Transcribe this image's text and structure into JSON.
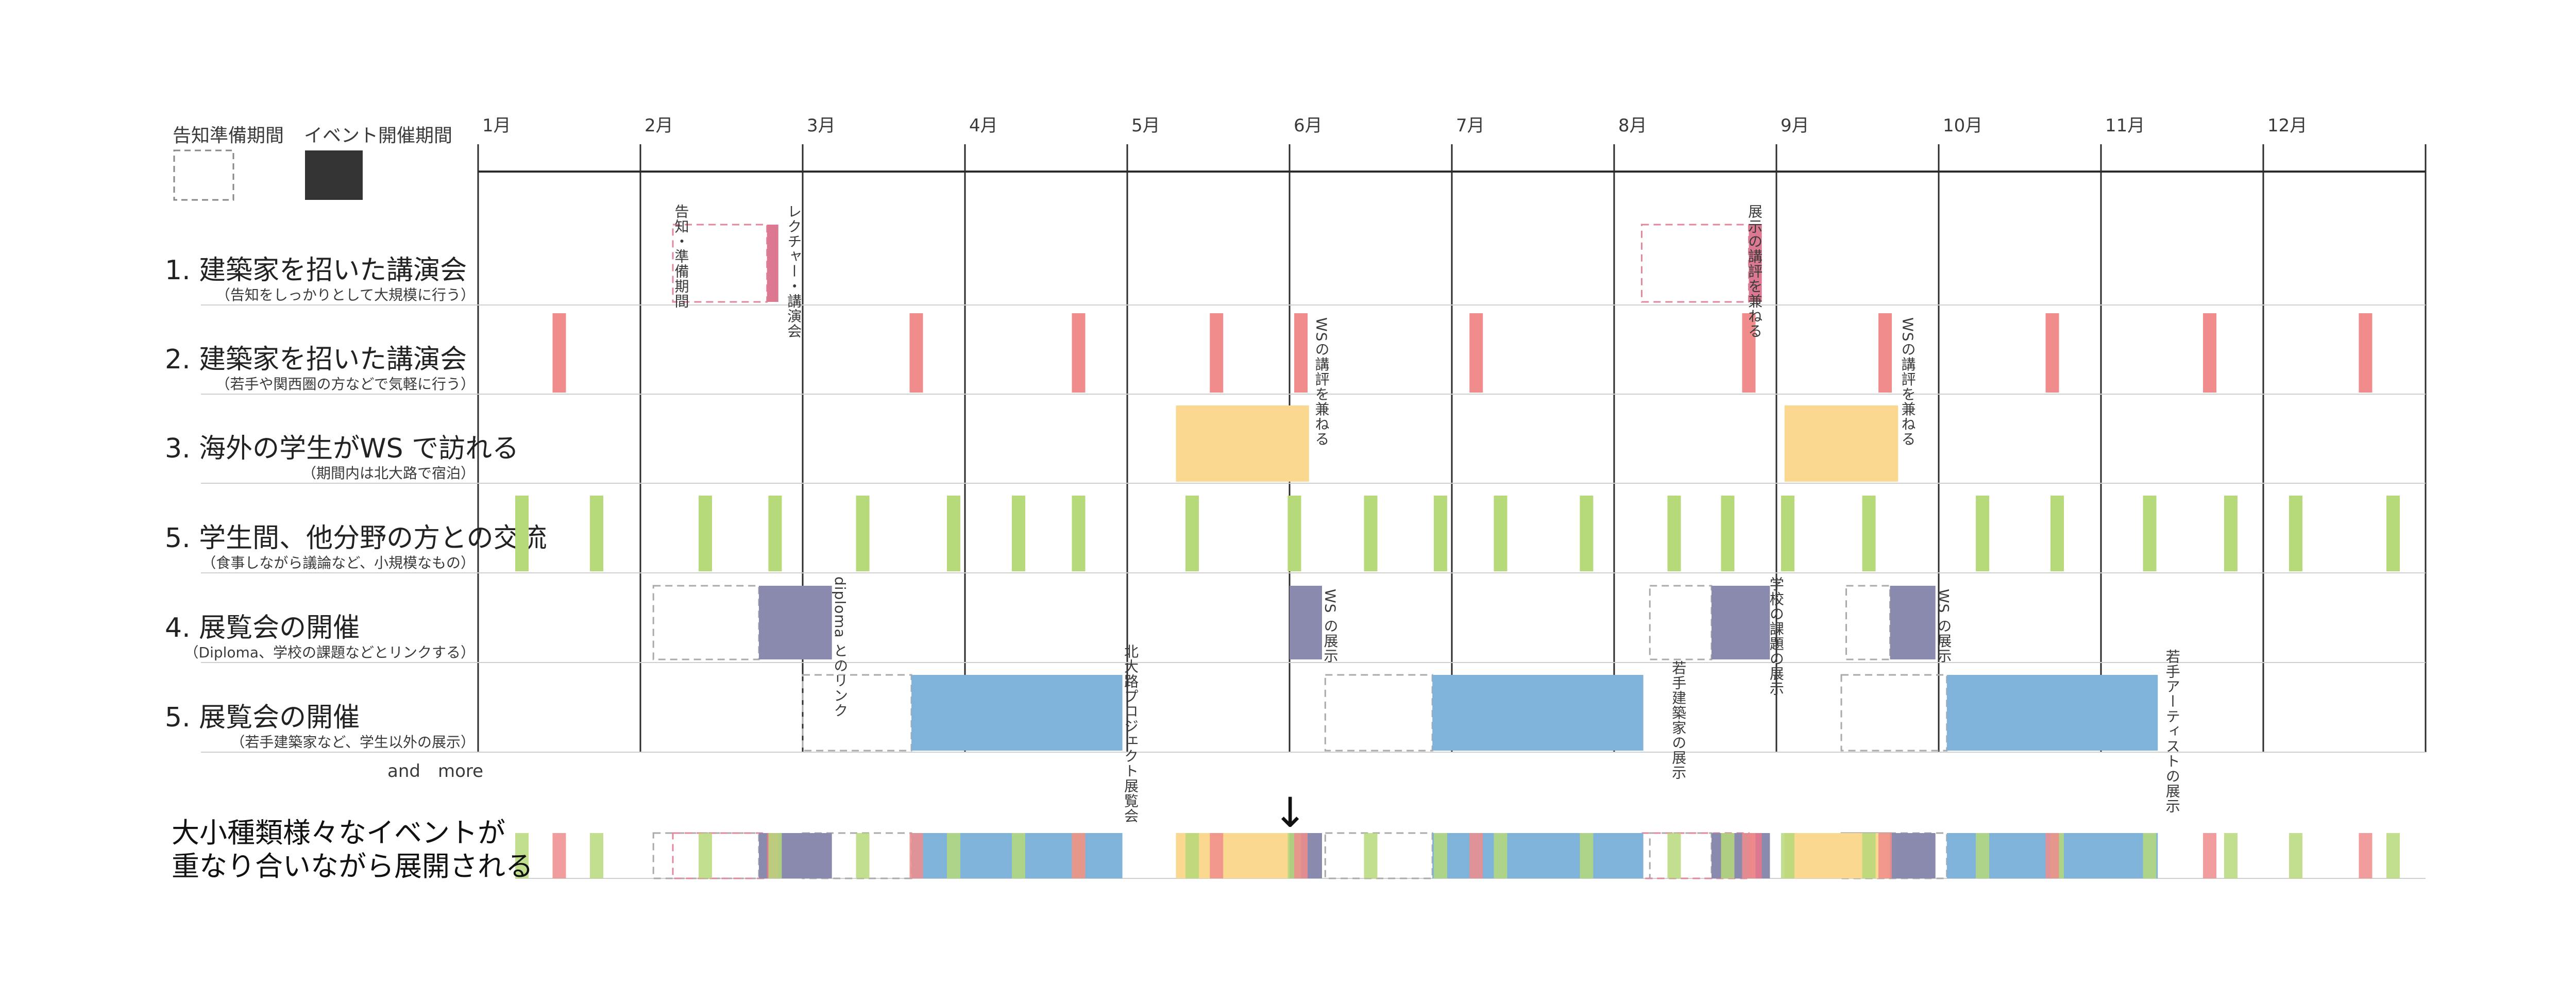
{
  "legend": {
    "prep_label": "告知準備期間",
    "event_label": "イベント開催期間"
  },
  "months": [
    "1月",
    "2月",
    "3月",
    "4月",
    "5月",
    "6月",
    "7月",
    "8月",
    "9月",
    "10月",
    "11月",
    "12月"
  ],
  "colors": {
    "red": "#f08c8c",
    "pink": "#dc7890",
    "orange": "#fad88f",
    "green": "#b6d97a",
    "purple": "#8a8aae",
    "blue": "#80b3da",
    "line": "#2b2b2b",
    "divider": "#cfcfcf",
    "text": "#3a3a3a",
    "dash_red": "#e0889b",
    "dash_gray": "#aaaaaa"
  },
  "rows": [
    {
      "id": "lecture-large",
      "title": "1. 建築家を招いた講演会",
      "subtitle": "（告知をしっかりとして大規模に行う）",
      "annotations": [
        "告知・準備期間",
        "レクチャー・講演会",
        "展示の講評を兼ねる"
      ]
    },
    {
      "id": "lecture-small",
      "title": "2. 建築家を招いた講演会",
      "subtitle": "（若手や関西圏の方などで気軽に行う）",
      "annotations": [
        "WSの講評を兼ねる",
        "WSの講評を兼ねる"
      ]
    },
    {
      "id": "overseas-ws",
      "title": "3. 海外の学生がWS で訪れる",
      "subtitle": "（期間内は北大路で宿泊）",
      "annotations": []
    },
    {
      "id": "exchange",
      "title": "5. 学生間、他分野の方との交流",
      "subtitle": "（食事しながら議論など、小規模なもの）",
      "annotations": []
    },
    {
      "id": "exhibition-school",
      "title": "4. 展覧会の開催",
      "subtitle": "（Diploma、学校の課題などとリンクする）",
      "annotations": [
        "diploma とのリンク",
        "WS の展示",
        "学校の課題の展示",
        "WS の展示"
      ]
    },
    {
      "id": "exhibition-external",
      "title": "5. 展覧会の開催",
      "subtitle": "（若手建築家など、学生以外の展示）",
      "annotations": [
        "北大路プロジェクト展覧会",
        "若手建築家の展示",
        "若手アーティストの展示"
      ]
    }
  ],
  "and_more": "and　more",
  "arrow": "↓",
  "conclusion": [
    "大小種類様々なイベントが",
    "重なり合いながら展開される"
  ],
  "events": {
    "lecture-large": {
      "prep": [
        [
          2.2,
          2.78
        ],
        [
          8.17,
          8.83
        ]
      ],
      "event": [
        [
          2.78,
          2.85
        ],
        [
          8.83,
          8.91
        ]
      ]
    },
    "lecture-small": [
      1.5,
      3.7,
      4.7,
      5.55,
      6.07,
      7.15,
      8.83,
      9.67,
      10.7,
      11.67,
      12.63
    ],
    "overseas-ws": [
      [
        5.3,
        6.12
      ],
      [
        9.05,
        9.75
      ]
    ],
    "exchange": [
      1.27,
      1.73,
      2.4,
      2.83,
      3.37,
      3.93,
      4.33,
      4.7,
      5.4,
      6.03,
      6.5,
      6.93,
      7.3,
      7.83,
      8.37,
      8.7,
      9.07,
      9.57,
      10.27,
      10.73,
      11.3,
      11.8,
      12.2,
      12.8
    ],
    "exhibition-school": {
      "prep": [
        [
          2.08,
          2.73
        ],
        [
          8.22,
          8.6
        ],
        [
          9.43,
          9.7
        ]
      ],
      "event": [
        [
          2.73,
          3.18
        ],
        [
          6.0,
          6.2
        ],
        [
          8.6,
          8.96
        ],
        [
          9.7,
          9.98
        ]
      ]
    },
    "exhibition-external": {
      "prep": [
        [
          3.0,
          3.67
        ],
        [
          6.22,
          6.88
        ],
        [
          9.4,
          10.05
        ]
      ],
      "event": [
        [
          3.67,
          4.97
        ],
        [
          6.88,
          8.18
        ],
        [
          10.05,
          11.35
        ]
      ]
    }
  }
}
